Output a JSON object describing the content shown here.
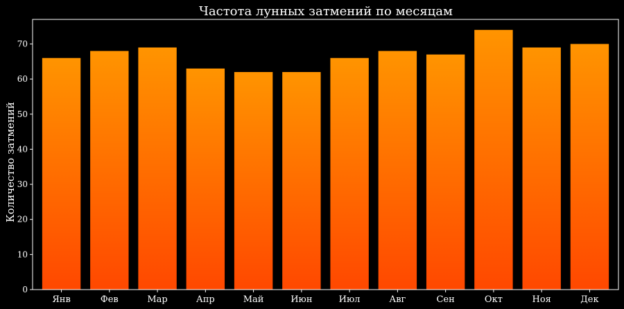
{
  "chart_data": {
    "type": "bar",
    "title": "Частота лунных затмений по месяцам",
    "xlabel": "",
    "ylabel": "Количество затмений",
    "categories": [
      "Янв",
      "Фев",
      "Мар",
      "Апр",
      "Май",
      "Июн",
      "Июл",
      "Авг",
      "Сен",
      "Окт",
      "Ноя",
      "Дек"
    ],
    "values": [
      66,
      68,
      69,
      63,
      62,
      62,
      66,
      68,
      67,
      74,
      69,
      70
    ],
    "ylim": [
      0,
      77
    ],
    "yticks": [
      0,
      10,
      20,
      30,
      40,
      50,
      60,
      70
    ],
    "grid": false,
    "colors": {
      "background": "#000000",
      "bar_top": "#ff9400",
      "bar_bottom": "#ff4800",
      "axis": "#ffffff",
      "text": "#ffffff"
    }
  }
}
